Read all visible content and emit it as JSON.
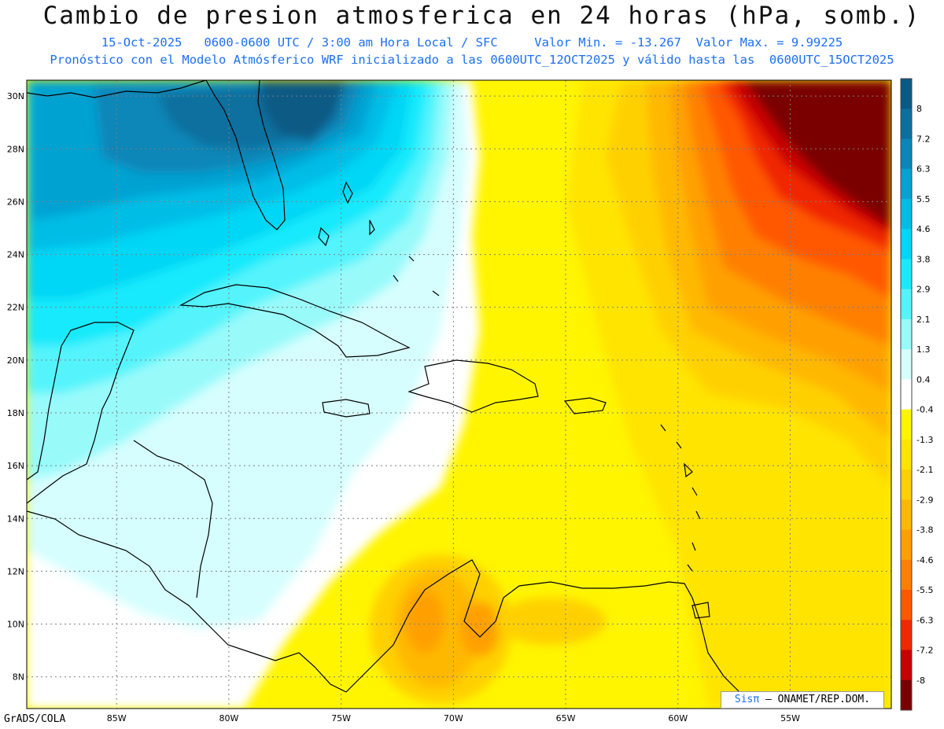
{
  "title": "Cambio de presion atmosferica en 24 horas (hPa, somb.)",
  "subtitle_1": "15-Oct-2025   0600-0600 UTC / 3:00 am Hora Local / SFC     Valor Min. = -13.267  Valor Max. = 9.99225",
  "subtitle_2": "Pronóstico con el Modelo Atmósferico WRF inicializado a las 0600UTC_12OCT2025 y válido hasta las  0600UTC_15OCT2025",
  "footer": "GrADS/COLA",
  "credit": {
    "logo": "Sisπ",
    "text": "– ONAMET/REP.DOM."
  },
  "map": {
    "lon_range": [
      -89,
      -50.5
    ],
    "lat_range": [
      6.8,
      30.6
    ],
    "lon_labels": [
      "85W",
      "80W",
      "75W",
      "70W",
      "65W",
      "60W",
      "55W"
    ],
    "lat_labels": [
      "30N",
      "28N",
      "26N",
      "24N",
      "22N",
      "20N",
      "18N",
      "16N",
      "14N",
      "12N",
      "10N",
      "8N"
    ],
    "grid": "dotted"
  },
  "colorbar": {
    "labels": [
      "8",
      "7.2",
      "6.3",
      "5.5",
      "4.6",
      "3.8",
      "2.9",
      "2.1",
      "1.3",
      "0.4",
      "-0.4",
      "-1.3",
      "-2.1",
      "-2.9",
      "-3.8",
      "-4.6",
      "-5.5",
      "-6.3",
      "-7.2",
      "-8"
    ],
    "colors": [
      "#0a5a85",
      "#0c6f9e",
      "#0a86b8",
      "#06a2d2",
      "#00bde6",
      "#00d6f5",
      "#18eafc",
      "#55f4fc",
      "#99fafa",
      "#d6fefe",
      "#ffffff",
      "#fff500",
      "#ffe400",
      "#ffd000",
      "#ffb800",
      "#ffa000",
      "#ff8000",
      "#ff5800",
      "#f02800",
      "#c80000",
      "#7a0000"
    ]
  }
}
